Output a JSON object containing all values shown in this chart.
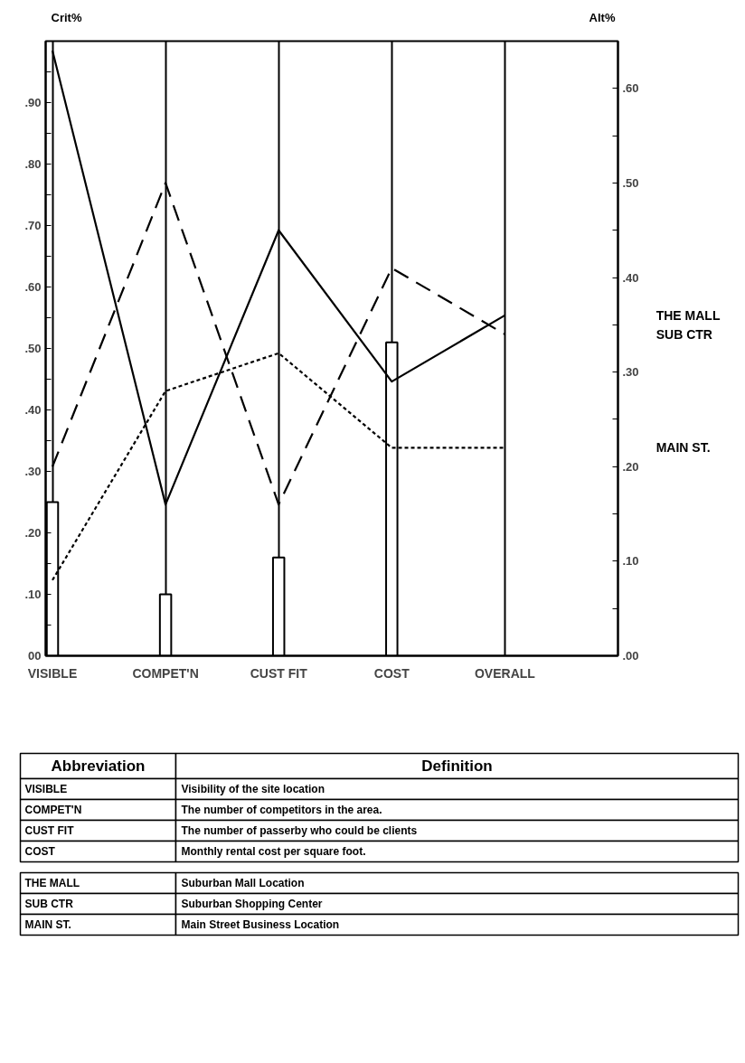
{
  "chart_data": {
    "type": "bar",
    "ylabel": "Crit%",
    "y2label": "Alt%",
    "categories": [
      "VISIBLE",
      "COMPET'N",
      "CUST FIT",
      "COST",
      "OVERALL"
    ],
    "series": [
      {
        "color": "#ffffff",
        "values": [
          0.25,
          0.1,
          0.16,
          0.51,
          null
        ]
      },
      {
        "type": "line",
        "axis": "y2",
        "name": "THE MALL",
        "color": "#000000",
        "line_style": "solid",
        "values": [
          0.64,
          0.16,
          0.45,
          0.29,
          0.36
        ]
      },
      {
        "type": "line",
        "axis": "y2",
        "name": "SUB CTR",
        "color": "#000000",
        "line_style": "dashed",
        "values": [
          0.2,
          0.5,
          0.16,
          0.41,
          0.34
        ]
      },
      {
        "type": "line",
        "axis": "y2",
        "name": "MAIN ST.",
        "color": "#000000",
        "line_style": "dotted",
        "values": [
          0.08,
          0.28,
          0.32,
          0.22,
          0.22
        ]
      }
    ],
    "ylim": [
      0,
      1.0
    ],
    "yticks": [
      {
        "value": 0,
        "label": "00"
      },
      {
        "value": 0.05,
        "label": null
      },
      {
        "value": 0.1,
        "label": ".10"
      },
      {
        "value": 0.15,
        "label": null
      },
      {
        "value": 0.2,
        "label": ".20"
      },
      {
        "value": 0.25,
        "label": null
      },
      {
        "value": 0.3,
        "label": ".30"
      },
      {
        "value": 0.35,
        "label": null
      },
      {
        "value": 0.4,
        "label": ".40"
      },
      {
        "value": 0.45,
        "label": null
      },
      {
        "value": 0.5,
        "label": ".50"
      },
      {
        "value": 0.55,
        "label": null
      },
      {
        "value": 0.6,
        "label": ".60"
      },
      {
        "value": 0.65,
        "label": null
      },
      {
        "value": 0.7,
        "label": ".70"
      },
      {
        "value": 0.75,
        "label": null
      },
      {
        "value": 0.8,
        "label": ".80"
      },
      {
        "value": 0.85,
        "label": null
      },
      {
        "value": 0.9,
        "label": ".90"
      },
      {
        "value": 0.95,
        "label": null
      }
    ],
    "y2lim": [
      0,
      0.65
    ],
    "y2ticks": [
      {
        "value": 0,
        "label": ".00"
      },
      {
        "value": 0.05,
        "label": null
      },
      {
        "value": 0.1,
        "label": ".10"
      },
      {
        "value": 0.15,
        "label": null
      },
      {
        "value": 0.2,
        "label": ".20"
      },
      {
        "value": 0.25,
        "label": null
      },
      {
        "value": 0.3,
        "label": ".30"
      },
      {
        "value": 0.35,
        "label": null
      },
      {
        "value": 0.4,
        "label": ".40"
      },
      {
        "value": 0.45,
        "label": null
      },
      {
        "value": 0.5,
        "label": ".50"
      },
      {
        "value": 0.55,
        "label": null
      },
      {
        "value": 0.6,
        "label": ".60"
      }
    ],
    "grid": "x",
    "legend": false,
    "marker": "none",
    "annotations": [
      "Abbreviation",
      "Definition",
      "VISIBLE",
      "Visibility of the site location",
      "COMPET'N",
      "The number of competitors in the area.",
      "CUST FIT",
      "The number of passerby who could be clients",
      "COST",
      "Monthly rental cost per square foot.",
      "THE MALL",
      "Suburban Mall Location",
      "SUB CTR",
      "Suburban Shopping Center",
      "MAIN ST.",
      "Main Street Business Location"
    ]
  }
}
